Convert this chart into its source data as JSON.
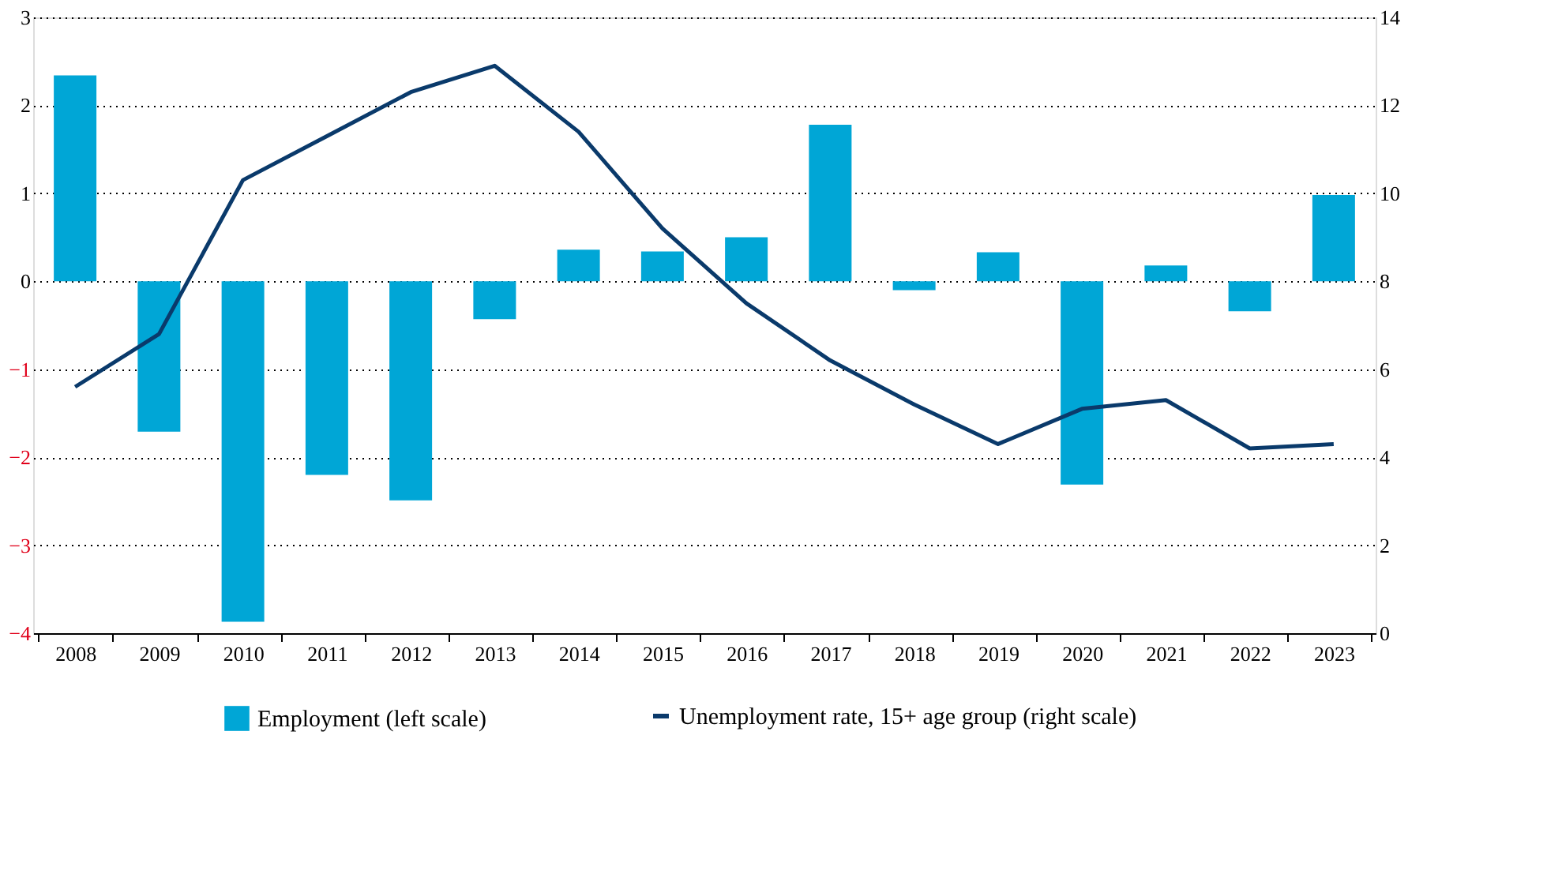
{
  "chart_data": {
    "type": "bar",
    "categories": [
      "2008",
      "2009",
      "2010",
      "2011",
      "2012",
      "2013",
      "2014",
      "2015",
      "2016",
      "2017",
      "2018",
      "2019",
      "2020",
      "2021",
      "2022",
      "2023"
    ],
    "series": [
      {
        "name": "Employment (left scale)",
        "color": "#00a6d6",
        "values": [
          2.34,
          -1.71,
          -3.87,
          -2.2,
          -2.49,
          -0.43,
          0.36,
          0.34,
          0.5,
          1.78,
          -0.1,
          0.33,
          -2.31,
          0.18,
          -0.34,
          0.98
        ]
      },
      {
        "name": "Unemployment rate, 15+ age group (right scale)",
        "type": "line",
        "axis": "y2",
        "color": "#0a3a6b",
        "values": [
          5.6,
          6.8,
          10.3,
          11.3,
          12.3,
          12.9,
          11.4,
          9.2,
          7.5,
          6.2,
          5.2,
          4.3,
          5.1,
          5.3,
          4.2,
          4.3
        ]
      }
    ],
    "ylim": [
      -4,
      3
    ],
    "yticks": [
      -4,
      -3,
      -2,
      -1,
      0,
      1,
      2,
      3
    ],
    "y2lim": [
      0,
      14
    ],
    "y2ticks": [
      0,
      2,
      4,
      6,
      8,
      10,
      12,
      14
    ],
    "grid": "y",
    "legend": "bottom",
    "marker": "none",
    "line_style": "solid"
  }
}
